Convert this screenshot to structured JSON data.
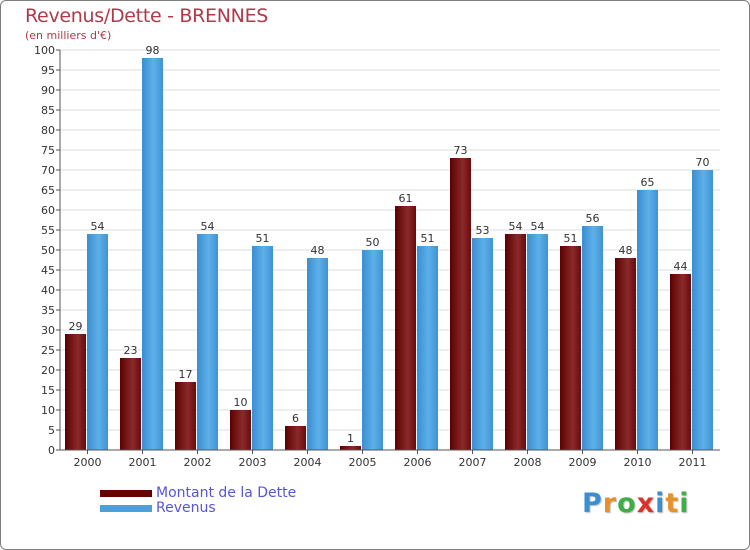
{
  "chart_data": {
    "type": "bar",
    "title": "Revenus/Dette - BRENNES",
    "subtitle": "(en milliers d'€)",
    "categories": [
      "2000",
      "2001",
      "2002",
      "2003",
      "2004",
      "2005",
      "2006",
      "2007",
      "2008",
      "2009",
      "2010",
      "2011"
    ],
    "series": [
      {
        "name": "Montant de la Dette",
        "color": "#660000",
        "values": [
          29,
          23,
          17,
          10,
          6,
          1,
          61,
          73,
          54,
          51,
          48,
          44
        ]
      },
      {
        "name": "Revenus",
        "color": "#4c9fd9",
        "values": [
          54,
          98,
          54,
          51,
          48,
          50,
          51,
          53,
          54,
          56,
          65,
          70
        ]
      }
    ],
    "ylim": [
      0,
      100
    ],
    "yticks": [
      0,
      5,
      10,
      15,
      20,
      25,
      30,
      35,
      40,
      45,
      50,
      55,
      60,
      65,
      70,
      75,
      80,
      85,
      90,
      95,
      100
    ],
    "grid": true,
    "legend_position": "bottom-left"
  },
  "legend": {
    "dette_label": "Montant de la Dette",
    "revenus_label": "Revenus"
  },
  "logo": {
    "text": "Proxiti",
    "letters": [
      "P",
      "r",
      "o",
      "x",
      "i",
      "t",
      "i"
    ],
    "colors": [
      "#3a8fd0",
      "#e8902a",
      "#3fae49",
      "#d9342b",
      "#3a8fd0",
      "#e8902a",
      "#3fae49"
    ]
  }
}
